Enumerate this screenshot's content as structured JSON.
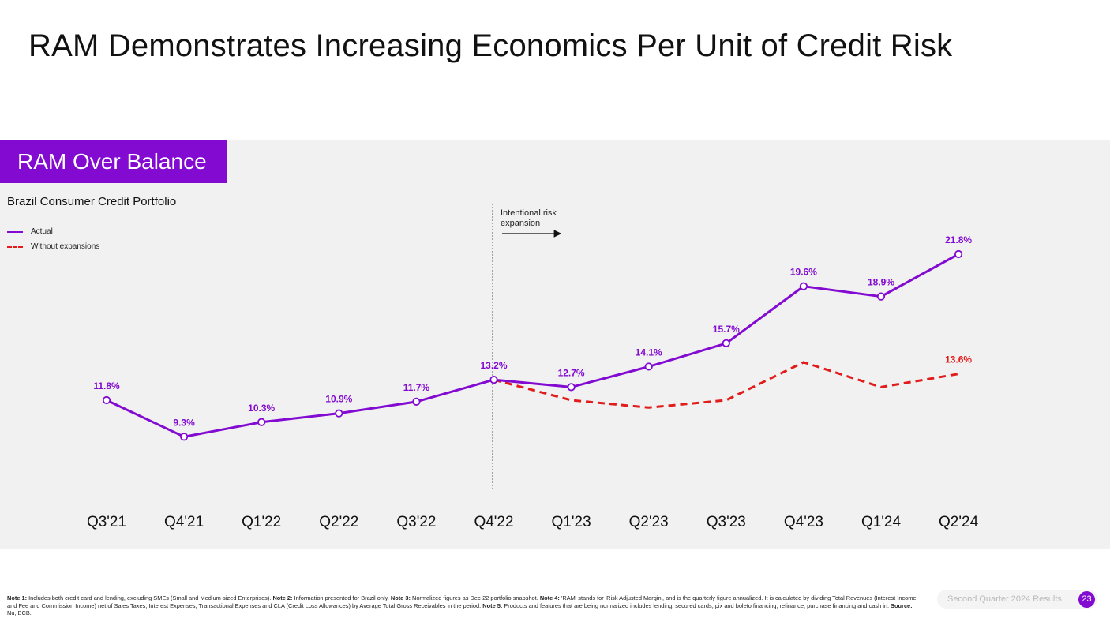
{
  "slide": {
    "title": "RAM Demonstrates Increasing Economics Per Unit of Credit Risk"
  },
  "panel": {
    "tag": "RAM Over Balance"
  },
  "chart_data": {
    "type": "line",
    "title": "Brazil Consumer Credit Portfolio",
    "categories": [
      "Q3'21",
      "Q4'21",
      "Q1'22",
      "Q2'22",
      "Q3'22",
      "Q4'22",
      "Q1'23",
      "Q2'23",
      "Q3'23",
      "Q4'23",
      "Q1'24",
      "Q2'24"
    ],
    "ylim": [
      0,
      25
    ],
    "grid": false,
    "legend_position": "top-left",
    "series": [
      {
        "name": "Actual",
        "color": "#820ad1",
        "style": "solid",
        "values": [
          11.8,
          9.3,
          10.3,
          10.9,
          11.7,
          13.2,
          12.7,
          14.1,
          15.7,
          19.6,
          18.9,
          21.8
        ],
        "labels": [
          "11.8%",
          "9.3%",
          "10.3%",
          "10.9%",
          "11.7%",
          "13.2%",
          "12.7%",
          "14.1%",
          "15.7%",
          "19.6%",
          "18.9%",
          "21.8%"
        ]
      },
      {
        "name": "Without expansions",
        "color": "#e21b1b",
        "style": "dashed",
        "values": [
          null,
          null,
          null,
          null,
          null,
          13.2,
          11.8,
          11.3,
          11.8,
          14.4,
          12.7,
          13.6
        ],
        "labels": [
          null,
          null,
          null,
          null,
          null,
          null,
          null,
          null,
          null,
          null,
          null,
          "13.6%"
        ]
      }
    ],
    "annotation": {
      "text_line1": "Intentional risk",
      "text_line2": "expansion",
      "at_category": "Q4'22"
    }
  },
  "footnotes": {
    "note1_label": "Note 1:",
    "note1_text": " Includes both credit card and lending, excluding SMEs (Small and Medium-sized Enterprises). ",
    "note2_label": "Note 2:",
    "note2_text": " Information presented for Brazil only. ",
    "note3_label": "Note 3:",
    "note3_text": " Normalized figures as Dec-22 portfolio snapshot. ",
    "note4_label": "Note 4:",
    "note4_text": " 'RAM' stands for 'Risk Adjusted Margin', and is the quarterly figure annualized. It is calculated by dividing Total Revenues (Interest Income and Fee and Commission Income) net of Sales Taxes, Interest Expenses, Transactional Expenses and CLA (Credit Loss Allowances) by Average Total Gross Receivables in the period. ",
    "note5_label": "Note 5:",
    "note5_text": " Products and features that are being normalized includes lending, secured cards, pix and boleto financing, refinance, purchase financing and cash in. ",
    "source_label": "Source:",
    "source_text": " Nu, BCB."
  },
  "footer": {
    "label": "Second Quarter 2024 Results",
    "page_number": "23"
  }
}
